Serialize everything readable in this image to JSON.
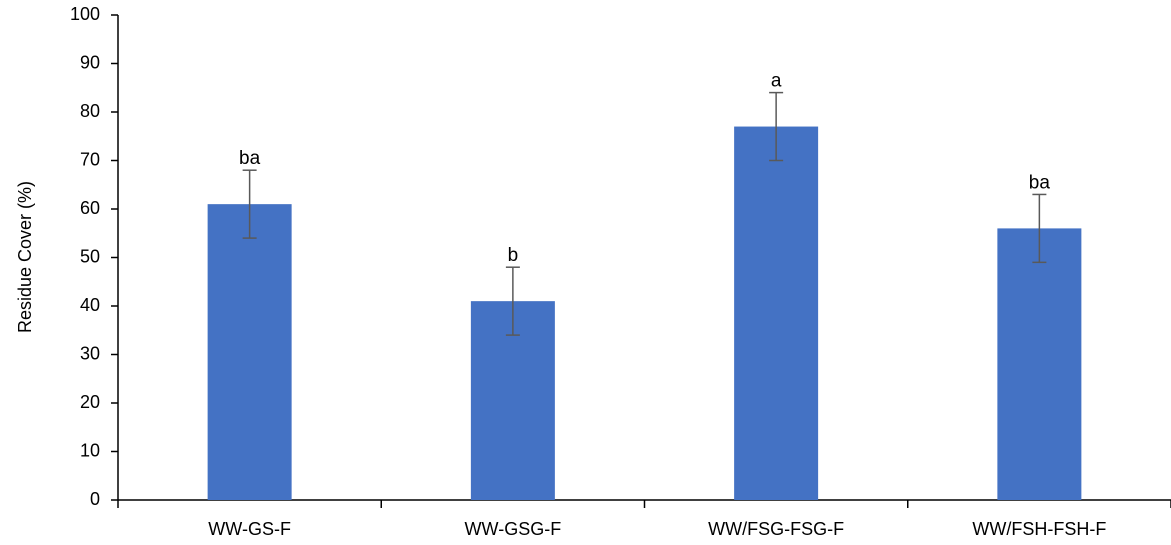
{
  "chart_data": {
    "type": "bar",
    "title": "",
    "xlabel": "",
    "ylabel": "Residue Cover (%)",
    "ylim": [
      0,
      100
    ],
    "yticks": [
      0,
      10,
      20,
      30,
      40,
      50,
      60,
      70,
      80,
      90,
      100
    ],
    "grid": false,
    "legend": "none",
    "categories": [
      "WW-GS-F",
      "WW-GSG-F",
      "WW/FSG-FSG-F",
      "WW/FSH-FSH-F"
    ],
    "values": [
      61,
      41,
      77,
      56
    ],
    "error": [
      7,
      7,
      7,
      7
    ],
    "letters": [
      "ba",
      "b",
      "a",
      "ba"
    ],
    "bar_color": "#4472c4",
    "error_color": "#595959"
  }
}
